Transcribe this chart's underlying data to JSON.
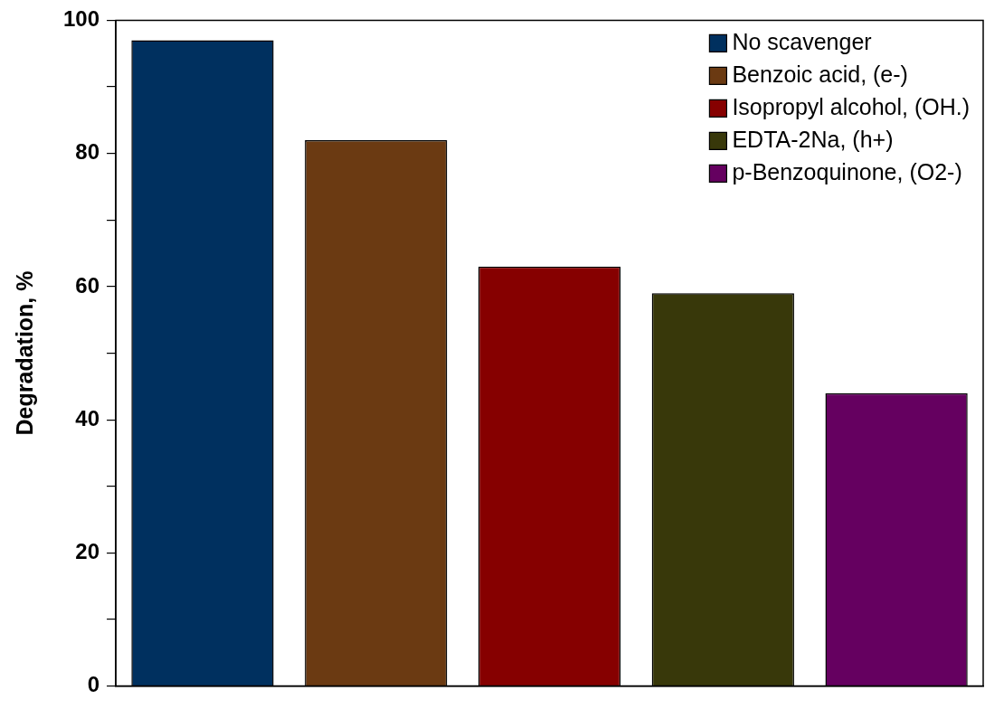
{
  "chart_data": {
    "type": "bar",
    "ylabel": "Degradation, %",
    "categories": [
      null,
      null,
      null,
      null,
      null
    ],
    "series": [
      {
        "name": "No scavenger",
        "color": "#00305f",
        "values": [
          97,
          null,
          null,
          null,
          null
        ]
      },
      {
        "name": "Benzoic acid, (e-)",
        "color": "#6b3a12",
        "values": [
          null,
          82,
          null,
          null,
          null
        ]
      },
      {
        "name": "Isopropyl alcohol, (OH.)",
        "color": "#860000",
        "values": [
          null,
          null,
          63,
          null,
          null
        ]
      },
      {
        "name": "EDTA-2Na, (h+)",
        "color": "#38380a",
        "values": [
          null,
          null,
          null,
          59,
          null
        ]
      },
      {
        "name": "p-Benzoquinone, (O2-)",
        "color": "#650060",
        "values": [
          null,
          null,
          null,
          null,
          44
        ]
      }
    ],
    "ylim": [
      0,
      100
    ],
    "yticks": [
      0,
      {
        "value": 10,
        "label": null
      },
      20,
      {
        "value": 30,
        "label": null
      },
      40,
      {
        "value": 50,
        "label": null
      },
      60,
      {
        "value": 70,
        "label": null
      },
      80,
      {
        "value": 90,
        "label": null
      },
      100
    ],
    "grid": false,
    "legend": "top right"
  }
}
